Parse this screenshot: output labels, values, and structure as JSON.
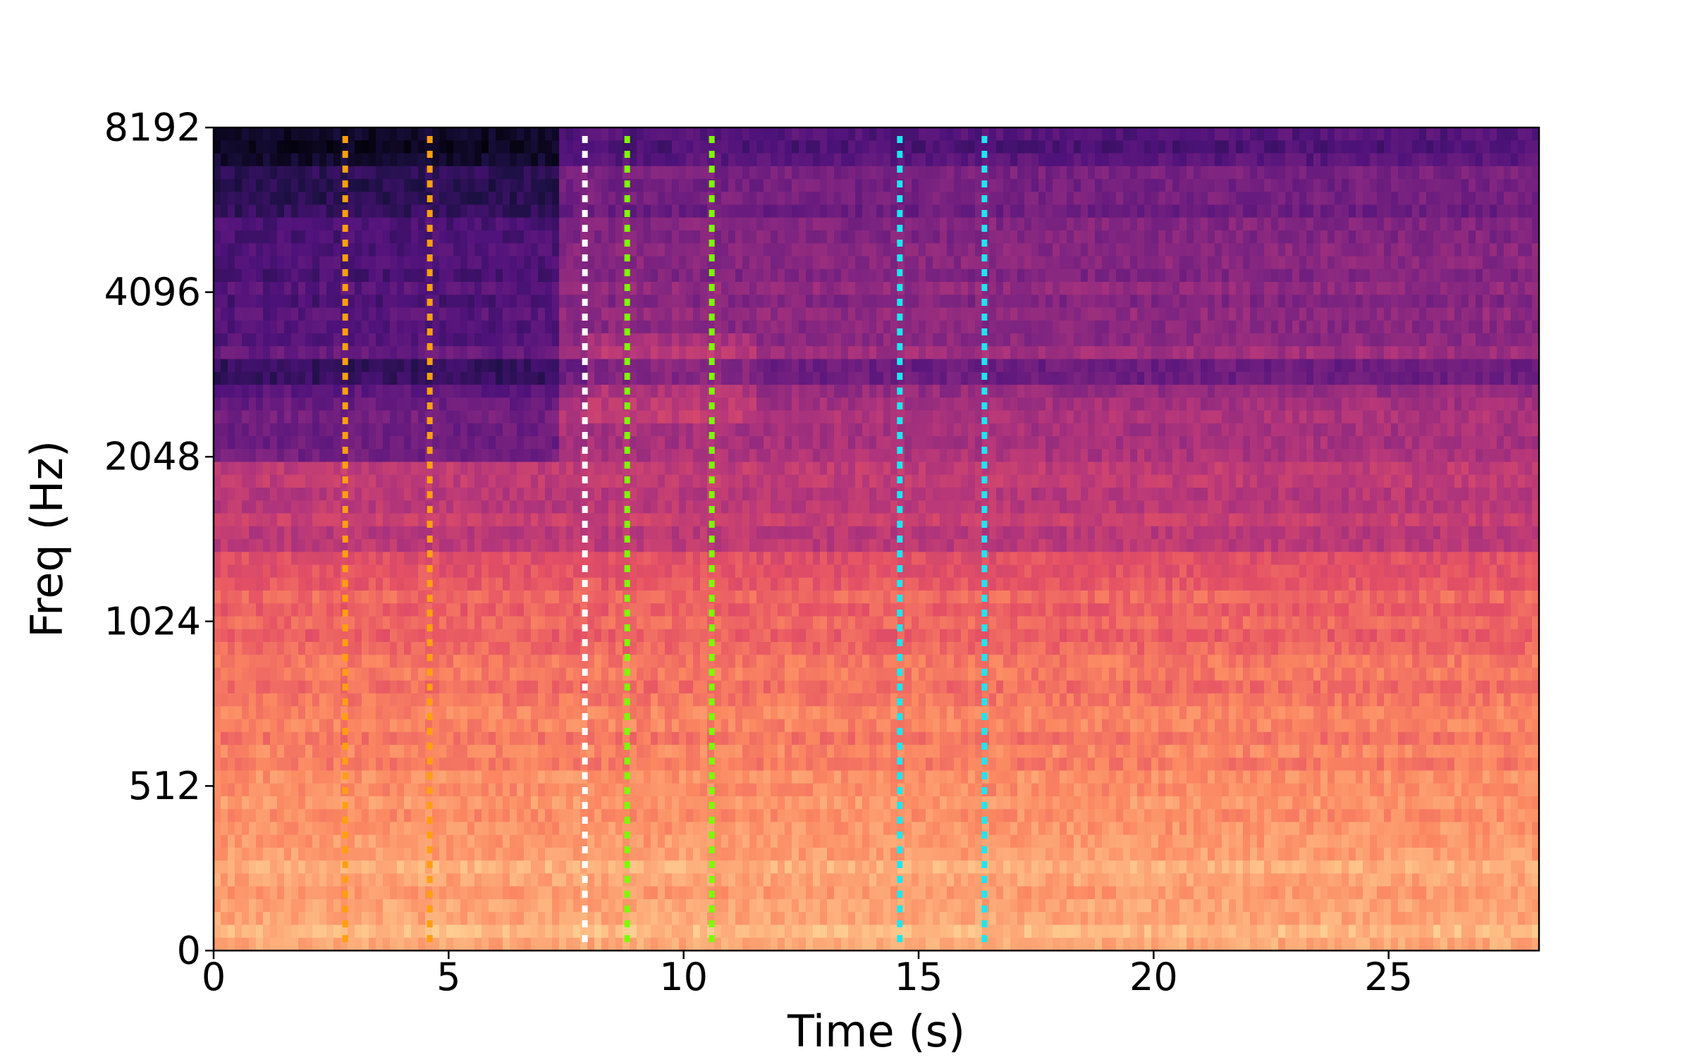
{
  "chart_data": {
    "type": "heatmap",
    "subtype": "spectrogram",
    "colormap": "magma",
    "xlabel": "Time (s)",
    "ylabel": "Freq (Hz)",
    "xlim": [
      0,
      28.2
    ],
    "ylim": [
      0,
      8192
    ],
    "y_scale": "log2 (zero at bottom)",
    "x_ticks": [
      0,
      5,
      10,
      15,
      20,
      25
    ],
    "x_tick_labels": [
      "0",
      "5",
      "10",
      "15",
      "20",
      "25"
    ],
    "y_ticks": [
      0,
      512,
      1024,
      2048,
      4096,
      8192
    ],
    "y_tick_labels": [
      "0",
      "512",
      "1024",
      "2048",
      "4096",
      "8192"
    ],
    "grid": false,
    "markers": [
      {
        "time": 2.8,
        "color": "#ff9f0f",
        "style": "dotted"
      },
      {
        "time": 4.6,
        "color": "#ff9f0f",
        "style": "dotted"
      },
      {
        "time": 7.9,
        "color": "#ffffff",
        "style": "dotted"
      },
      {
        "time": 8.8,
        "color": "#7cfc00",
        "style": "dotted"
      },
      {
        "time": 10.6,
        "color": "#7cfc00",
        "style": "dotted"
      },
      {
        "time": 14.6,
        "color": "#1ee6f0",
        "style": "dotted"
      },
      {
        "time": 16.4,
        "color": "#1ee6f0",
        "style": "dotted"
      }
    ],
    "notable_features": {
      "dark_onset_region": {
        "time_end": 7.3,
        "freq_min": 2048
      },
      "dark_band_freq": 2900,
      "brightness_trend": "higher energy at low frequencies"
    }
  }
}
